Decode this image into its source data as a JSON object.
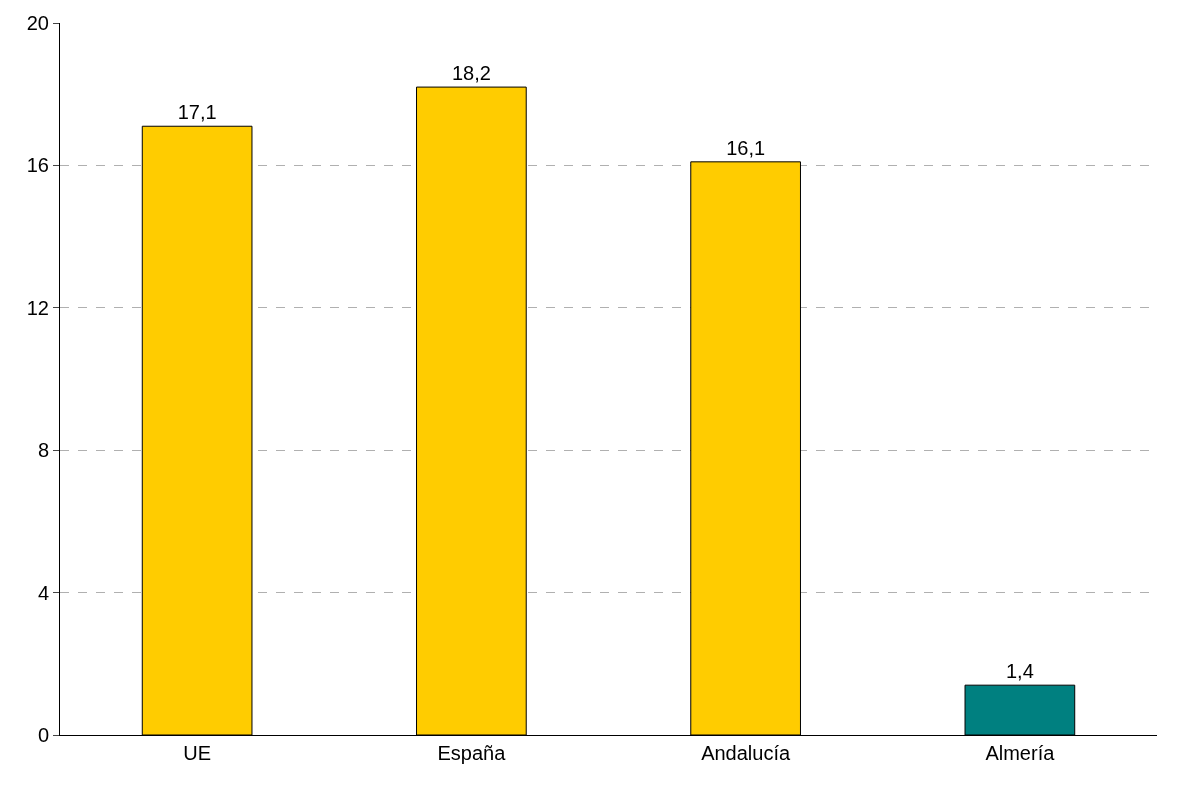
{
  "chart_data": {
    "type": "bar",
    "categories": [
      "UE",
      "España",
      "Andalucía",
      "Almería"
    ],
    "values": [
      17.1,
      18.2,
      16.1,
      1.4
    ],
    "colors": [
      "#ffcc00",
      "#ffcc00",
      "#ffcc00",
      "#008080"
    ],
    "value_labels": [
      "17,1",
      "18,2",
      "16,1",
      "1,4"
    ],
    "ylim": [
      0,
      20
    ],
    "yticks": [
      0,
      4,
      8,
      12,
      16,
      20
    ],
    "grid": "y",
    "legend": false
  }
}
